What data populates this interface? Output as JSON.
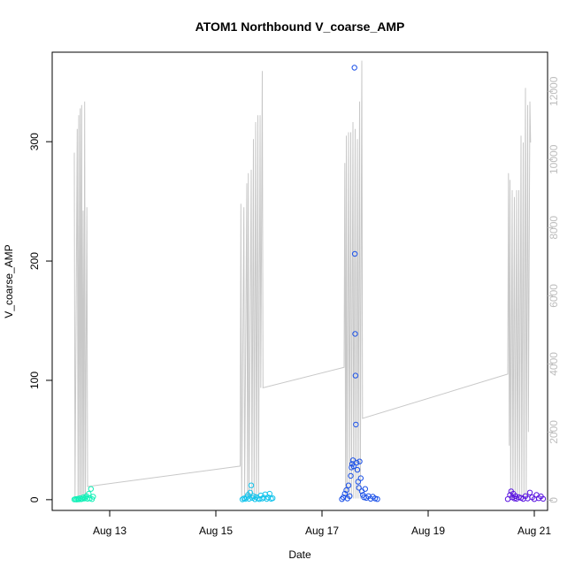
{
  "chart_data": {
    "type": "scatter",
    "title": "ATOM1 Northbound V_coarse_AMP",
    "xlabel": "Date",
    "ylabel": "V_coarse_AMP",
    "xlim": [
      "2013-08-11T22:00",
      "2013-08-21T06:00"
    ],
    "ylim": [
      -9,
      375
    ],
    "y2lim": [
      -300,
      13150
    ],
    "x_ticks": [
      "Aug 13",
      "Aug 15",
      "Aug 17",
      "Aug 19",
      "Aug 21"
    ],
    "x_tick_dates": [
      "2013-08-13",
      "2013-08-15",
      "2013-08-17",
      "2013-08-19",
      "2013-08-21"
    ],
    "y_ticks": [
      0,
      100,
      200,
      300
    ],
    "y2_ticks": [
      0,
      2000,
      4000,
      6000,
      8000,
      10000,
      12000
    ],
    "grid": false,
    "legend": "none",
    "colors": {
      "line": "#c8c8c8",
      "axis": "#000000",
      "right_axis_text": "#bdbdbd"
    },
    "series": [
      {
        "type": "points",
        "color": "#13f0b8",
        "points": [
          [
            "2013-08-12T08:00",
            0.2
          ],
          [
            "2013-08-12T08:30",
            0.5
          ],
          [
            "2013-08-12T09:00",
            0.1
          ],
          [
            "2013-08-12T09:30",
            0.8
          ],
          [
            "2013-08-12T10:00",
            0.3
          ],
          [
            "2013-08-12T10:30",
            1.2
          ],
          [
            "2013-08-12T11:00",
            0.4
          ],
          [
            "2013-08-12T11:30",
            0.6
          ],
          [
            "2013-08-12T12:00",
            2.0
          ],
          [
            "2013-08-12T12:30",
            0.9
          ],
          [
            "2013-08-12T13:00",
            1.5
          ],
          [
            "2013-08-12T13:30",
            3.0
          ],
          [
            "2013-08-12T14:00",
            0.7
          ],
          [
            "2013-08-12T14:30",
            5.0
          ],
          [
            "2013-08-12T15:00",
            1.1
          ],
          [
            "2013-08-12T15:30",
            9.0
          ],
          [
            "2013-08-12T16:00",
            0.5
          ],
          [
            "2013-08-12T16:30",
            2.5
          ]
        ]
      },
      {
        "type": "points",
        "color": "#14c4ec",
        "points": [
          [
            "2013-08-15T12:00",
            0.3
          ],
          [
            "2013-08-15T12:40",
            1.0
          ],
          [
            "2013-08-15T13:20",
            0.6
          ],
          [
            "2013-08-15T14:00",
            2.0
          ],
          [
            "2013-08-15T14:30",
            4.0
          ],
          [
            "2013-08-15T15:00",
            0.8
          ],
          [
            "2013-08-15T15:30",
            6.0
          ],
          [
            "2013-08-15T16:00",
            12.0
          ],
          [
            "2013-08-15T16:30",
            1.5
          ],
          [
            "2013-08-15T17:00",
            3.0
          ],
          [
            "2013-08-15T17:40",
            0.4
          ],
          [
            "2013-08-15T18:20",
            2.2
          ],
          [
            "2013-08-15T19:00",
            1.0
          ],
          [
            "2013-08-15T19:40",
            0.5
          ],
          [
            "2013-08-15T20:20",
            3.5
          ],
          [
            "2013-08-15T21:00",
            0.9
          ],
          [
            "2013-08-15T21:40",
            1.8
          ],
          [
            "2013-08-15T22:20",
            4.5
          ],
          [
            "2013-08-15T23:00",
            0.6
          ],
          [
            "2013-08-15T23:40",
            2.0
          ],
          [
            "2013-08-16T00:20",
            5.0
          ],
          [
            "2013-08-16T01:00",
            0.8
          ],
          [
            "2013-08-16T01:40",
            1.2
          ]
        ]
      },
      {
        "type": "points",
        "color": "#1a50e8",
        "points": [
          [
            "2013-08-17T09:00",
            0.5
          ],
          [
            "2013-08-17T09:40",
            2.0
          ],
          [
            "2013-08-17T10:20",
            5.0
          ],
          [
            "2013-08-17T11:00",
            8.0
          ],
          [
            "2013-08-17T11:30",
            1.0
          ],
          [
            "2013-08-17T12:00",
            12.0
          ],
          [
            "2013-08-17T12:30",
            3.0
          ],
          [
            "2013-08-17T13:00",
            20.0
          ],
          [
            "2013-08-17T13:20",
            27.0
          ],
          [
            "2013-08-17T13:40",
            30.0
          ],
          [
            "2013-08-17T14:00",
            33.0
          ],
          [
            "2013-08-17T14:20",
            28.0
          ],
          [
            "2013-08-17T14:40",
            362.0
          ],
          [
            "2013-08-17T14:50",
            206.0
          ],
          [
            "2013-08-17T15:00",
            139.0
          ],
          [
            "2013-08-17T15:10",
            104.0
          ],
          [
            "2013-08-17T15:20",
            63.0
          ],
          [
            "2013-08-17T15:40",
            31.0
          ],
          [
            "2013-08-17T16:00",
            25.0
          ],
          [
            "2013-08-17T16:20",
            15.0
          ],
          [
            "2013-08-17T16:40",
            10.0
          ],
          [
            "2013-08-17T17:00",
            32.0
          ],
          [
            "2013-08-17T17:30",
            18.0
          ],
          [
            "2013-08-17T18:00",
            7.0
          ],
          [
            "2013-08-17T18:30",
            4.0
          ],
          [
            "2013-08-17T19:00",
            2.0
          ],
          [
            "2013-08-17T19:30",
            9.0
          ],
          [
            "2013-08-17T20:00",
            1.5
          ],
          [
            "2013-08-17T21:00",
            3.0
          ],
          [
            "2013-08-17T22:00",
            0.8
          ],
          [
            "2013-08-17T23:00",
            2.5
          ],
          [
            "2013-08-18T00:00",
            1.0
          ],
          [
            "2013-08-18T01:00",
            0.5
          ]
        ]
      },
      {
        "type": "points",
        "color": "#5a14e0",
        "points": [
          [
            "2013-08-20T12:00",
            0.5
          ],
          [
            "2013-08-20T13:00",
            4.0
          ],
          [
            "2013-08-20T13:30",
            7.0
          ],
          [
            "2013-08-20T14:00",
            2.0
          ],
          [
            "2013-08-20T14:30",
            5.0
          ],
          [
            "2013-08-20T15:00",
            1.0
          ],
          [
            "2013-08-20T15:30",
            3.0
          ],
          [
            "2013-08-20T16:00",
            0.8
          ],
          [
            "2013-08-20T17:00",
            2.2
          ],
          [
            "2013-08-20T18:00",
            1.5
          ],
          [
            "2013-08-20T19:00",
            0.6
          ],
          [
            "2013-08-20T20:00",
            3.0
          ],
          [
            "2013-08-20T21:00",
            1.0
          ],
          [
            "2013-08-20T22:00",
            6.0
          ],
          [
            "2013-08-20T23:00",
            2.0
          ],
          [
            "2013-08-21T00:00",
            0.5
          ],
          [
            "2013-08-21T01:00",
            4.0
          ],
          [
            "2013-08-21T02:00",
            1.2
          ],
          [
            "2013-08-21T03:00",
            2.8
          ],
          [
            "2013-08-21T04:00",
            0.7
          ]
        ]
      }
    ],
    "line_series": {
      "axis": "right",
      "color": "#c8c8c8",
      "points": [
        [
          "2013-08-12T08:00",
          10200
        ],
        [
          "2013-08-12T08:20",
          50
        ],
        [
          "2013-08-12T09:20",
          10900
        ],
        [
          "2013-08-12T09:40",
          50
        ],
        [
          "2013-08-12T10:00",
          11300
        ],
        [
          "2013-08-12T10:20",
          50
        ],
        [
          "2013-08-12T10:40",
          11500
        ],
        [
          "2013-08-12T11:00",
          50
        ],
        [
          "2013-08-12T11:20",
          11600
        ],
        [
          "2013-08-12T11:40",
          50
        ],
        [
          "2013-08-12T12:00",
          8500
        ],
        [
          "2013-08-12T12:20",
          50
        ],
        [
          "2013-08-12T12:40",
          11700
        ],
        [
          "2013-08-12T13:00",
          50
        ],
        [
          "2013-08-12T13:40",
          8600
        ],
        [
          "2013-08-12T14:00",
          400
        ],
        [
          "2013-08-15T11:00",
          1000
        ],
        [
          "2013-08-15T11:20",
          8700
        ],
        [
          "2013-08-15T11:40",
          50
        ],
        [
          "2013-08-15T12:40",
          8600
        ],
        [
          "2013-08-15T13:00",
          50
        ],
        [
          "2013-08-15T14:00",
          9300
        ],
        [
          "2013-08-15T14:20",
          50
        ],
        [
          "2013-08-15T14:40",
          9600
        ],
        [
          "2013-08-15T15:00",
          50
        ],
        [
          "2013-08-15T16:00",
          9700
        ],
        [
          "2013-08-15T16:20",
          50
        ],
        [
          "2013-08-15T17:00",
          10600
        ],
        [
          "2013-08-15T17:20",
          50
        ],
        [
          "2013-08-15T18:00",
          11100
        ],
        [
          "2013-08-15T18:20",
          50
        ],
        [
          "2013-08-15T19:00",
          11300
        ],
        [
          "2013-08-15T19:20",
          50
        ],
        [
          "2013-08-15T20:00",
          11300
        ],
        [
          "2013-08-15T20:20",
          3300
        ],
        [
          "2013-08-15T21:00",
          12600
        ],
        [
          "2013-08-15T21:20",
          3300
        ],
        [
          "2013-08-17T10:00",
          3900
        ],
        [
          "2013-08-17T10:20",
          9900
        ],
        [
          "2013-08-17T10:40",
          50
        ],
        [
          "2013-08-17T11:00",
          10700
        ],
        [
          "2013-08-17T11:20",
          50
        ],
        [
          "2013-08-17T12:00",
          10800
        ],
        [
          "2013-08-17T12:20",
          50
        ],
        [
          "2013-08-17T13:00",
          10800
        ],
        [
          "2013-08-17T13:20",
          50
        ],
        [
          "2013-08-17T14:00",
          11100
        ],
        [
          "2013-08-17T14:20",
          50
        ],
        [
          "2013-08-17T15:00",
          10900
        ],
        [
          "2013-08-17T15:20",
          50
        ],
        [
          "2013-08-17T16:00",
          10600
        ],
        [
          "2013-08-17T16:20",
          50
        ],
        [
          "2013-08-17T17:00",
          11700
        ],
        [
          "2013-08-17T17:20",
          50
        ],
        [
          "2013-08-17T18:00",
          12900
        ],
        [
          "2013-08-17T18:20",
          2400
        ],
        [
          "2013-08-20T12:00",
          3700
        ],
        [
          "2013-08-20T12:20",
          9600
        ],
        [
          "2013-08-20T12:40",
          1600
        ],
        [
          "2013-08-20T13:00",
          9400
        ],
        [
          "2013-08-20T13:20",
          50
        ],
        [
          "2013-08-20T14:00",
          9100
        ],
        [
          "2013-08-20T14:20",
          50
        ],
        [
          "2013-08-20T15:00",
          8900
        ],
        [
          "2013-08-20T15:20",
          50
        ],
        [
          "2013-08-20T16:00",
          9100
        ],
        [
          "2013-08-20T16:20",
          50
        ],
        [
          "2013-08-20T17:00",
          9100
        ],
        [
          "2013-08-20T17:20",
          50
        ],
        [
          "2013-08-20T18:00",
          10700
        ],
        [
          "2013-08-20T18:20",
          50
        ],
        [
          "2013-08-20T19:00",
          10500
        ],
        [
          "2013-08-20T19:20",
          50
        ],
        [
          "2013-08-20T20:00",
          12100
        ],
        [
          "2013-08-20T20:20",
          50
        ],
        [
          "2013-08-20T21:00",
          11600
        ],
        [
          "2013-08-20T21:20",
          2000
        ],
        [
          "2013-08-20T22:00",
          11700
        ],
        [
          "2013-08-20T22:20",
          10500
        ]
      ]
    }
  }
}
